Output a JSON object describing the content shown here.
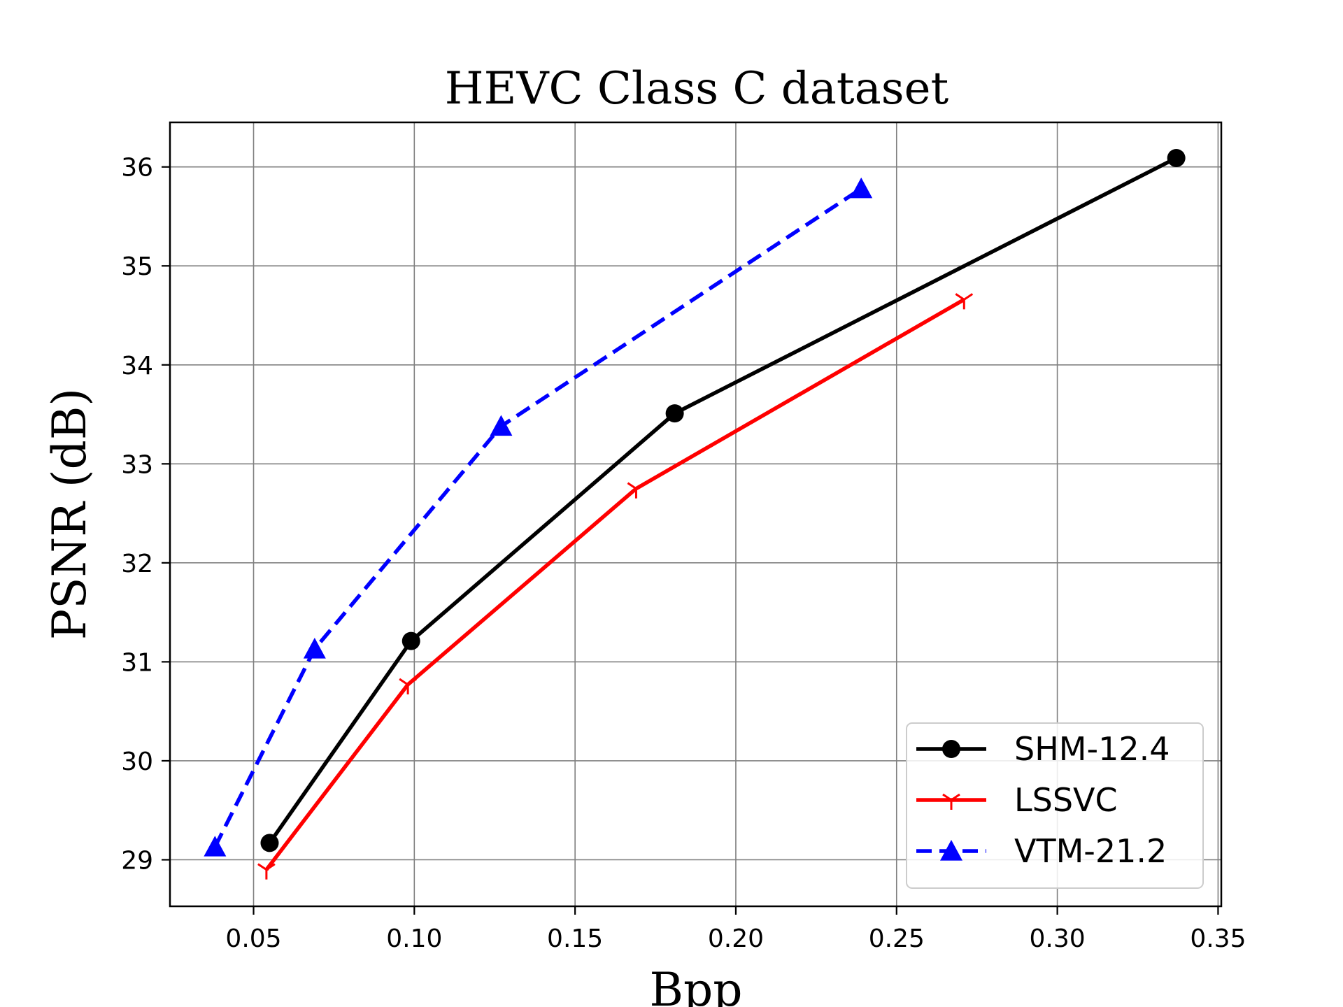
{
  "chart_data": {
    "type": "line",
    "title": "HEVC Class C dataset",
    "xlabel": "Bpp",
    "ylabel": "PSNR (dB)",
    "xlim": [
      0.024,
      0.351
    ],
    "ylim": [
      28.53,
      36.45
    ],
    "xticks": [
      0.05,
      0.1,
      0.15,
      0.2,
      0.25,
      0.3,
      0.35
    ],
    "xtick_labels": [
      "0.05",
      "0.10",
      "0.15",
      "0.20",
      "0.25",
      "0.30",
      "0.35"
    ],
    "yticks": [
      29,
      30,
      31,
      32,
      33,
      34,
      35,
      36
    ],
    "ytick_labels": [
      "29",
      "30",
      "31",
      "32",
      "33",
      "34",
      "35",
      "36"
    ],
    "grid": true,
    "legend_position": "lower-right",
    "series": [
      {
        "name": "SHM-12.4",
        "color": "#000000",
        "line_style": "solid",
        "marker": "circle",
        "x": [
          0.055,
          0.099,
          0.181,
          0.337
        ],
        "y": [
          29.17,
          31.21,
          33.51,
          36.09
        ]
      },
      {
        "name": "LSSVC",
        "color": "#ff0000",
        "line_style": "solid",
        "marker": "tri-down",
        "x": [
          0.054,
          0.098,
          0.169,
          0.271
        ],
        "y": [
          28.9,
          30.77,
          32.75,
          34.66
        ]
      },
      {
        "name": "VTM-21.2",
        "color": "#0000ff",
        "line_style": "dashed",
        "marker": "triangle",
        "x": [
          0.038,
          0.069,
          0.127,
          0.239
        ],
        "y": [
          29.13,
          31.13,
          33.38,
          35.78
        ]
      }
    ]
  }
}
